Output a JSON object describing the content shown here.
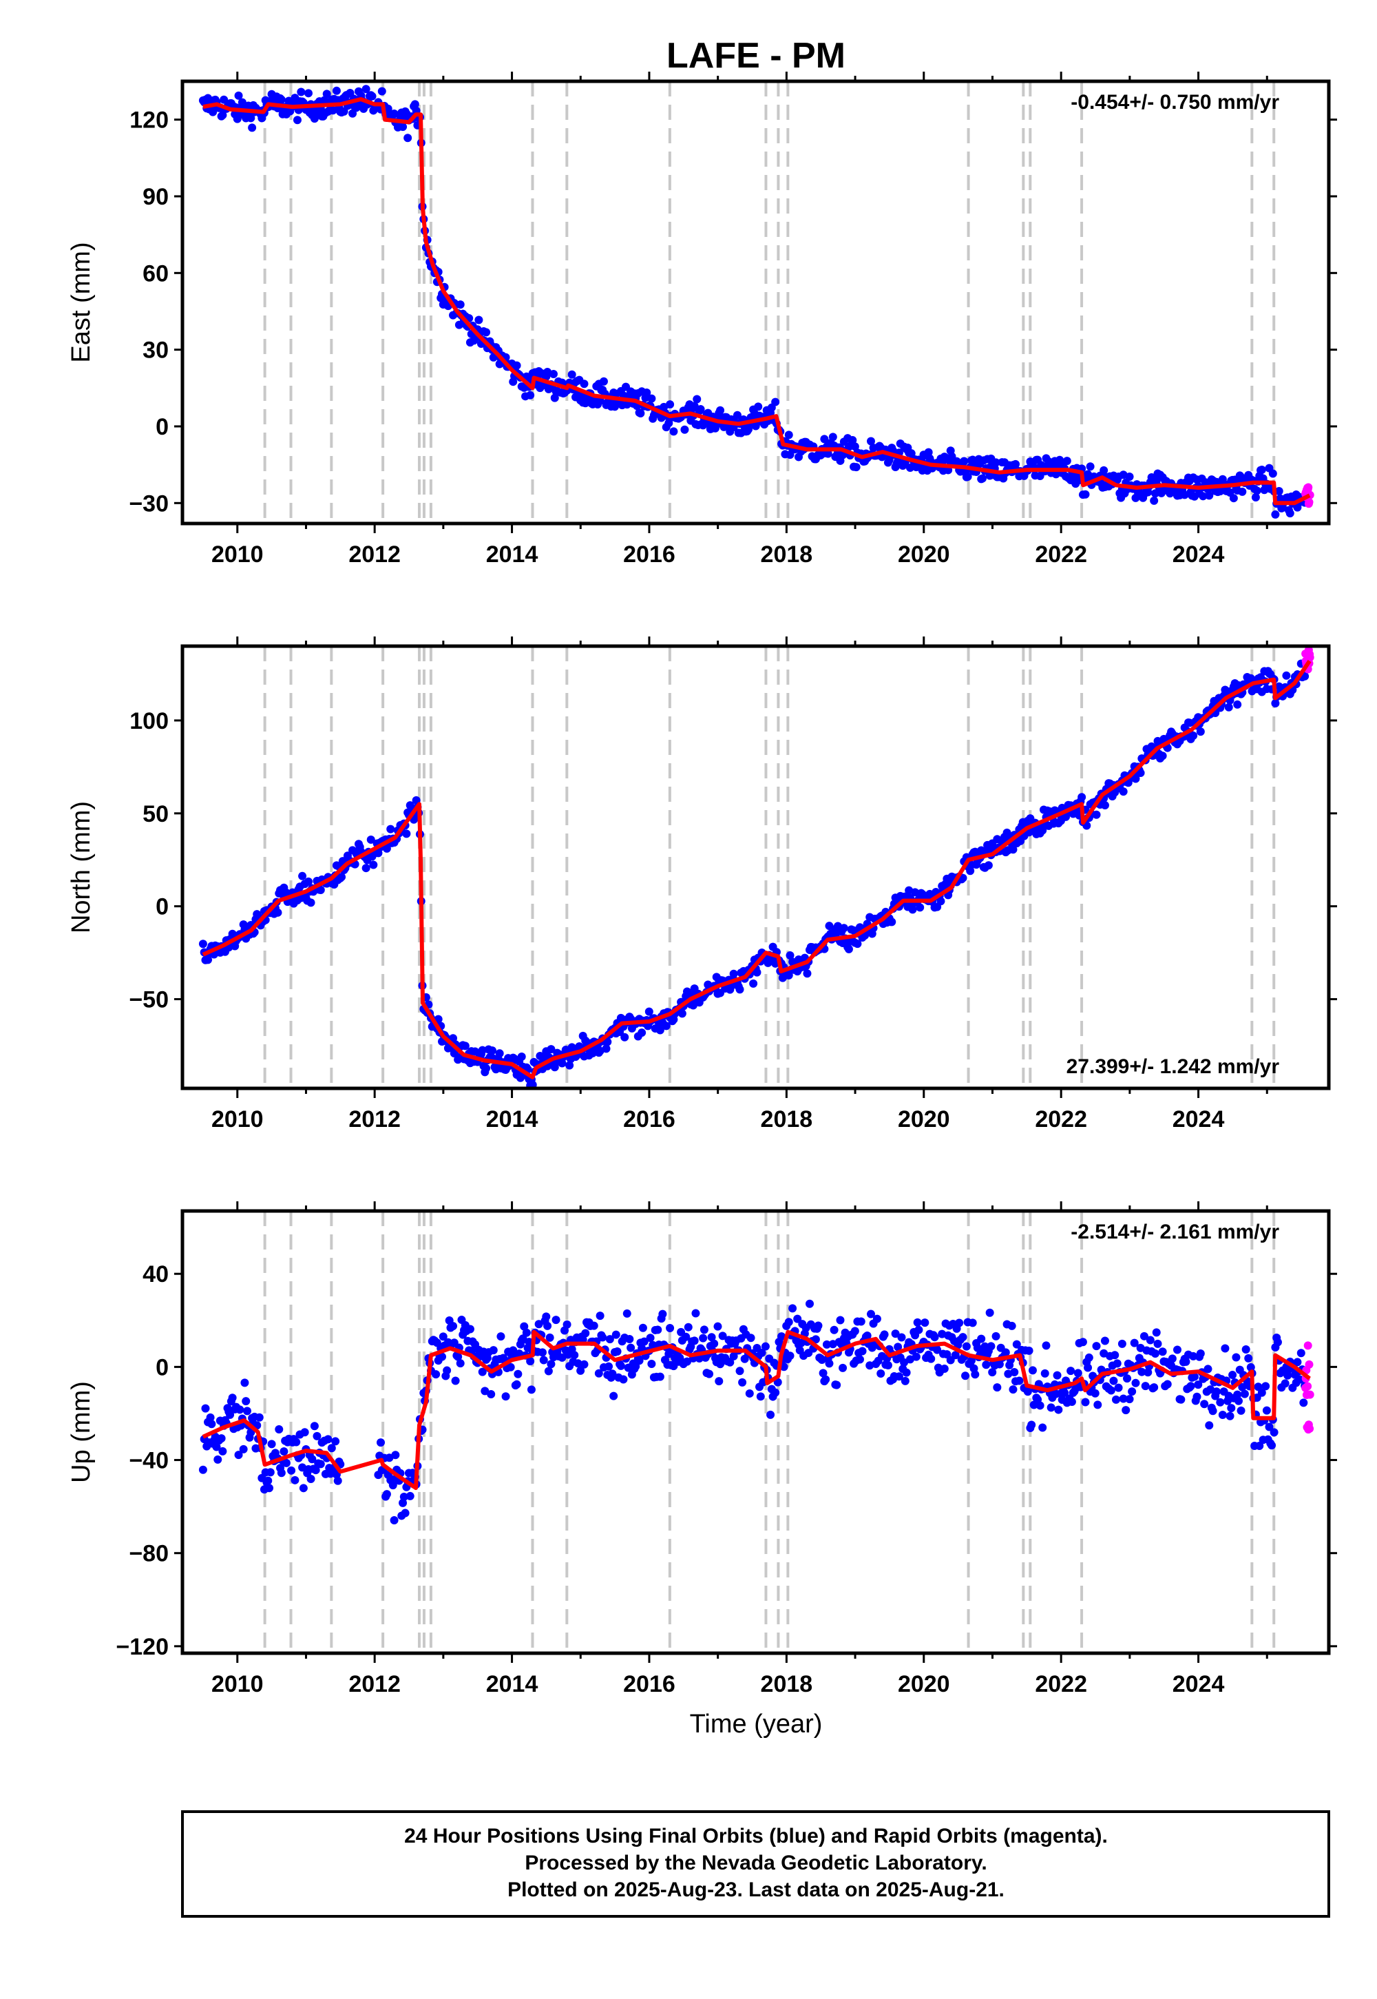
{
  "title": "LAFE - PM",
  "x_axis_label": "Time (year)",
  "footer": {
    "line1": "24 Hour Positions Using Final Orbits (blue) and Rapid Orbits (magenta).",
    "line2": "Processed by the Nevada Geodetic Laboratory.",
    "line3": "Plotted on 2025-Aug-23. Last data on 2025-Aug-21."
  },
  "colors": {
    "final_orbits": "#0000ff",
    "rapid_orbits": "#ff00ff",
    "model_fit": "#ff0000",
    "event_lines": "#c8c8c8"
  },
  "chart_data": [
    {
      "type": "scatter",
      "name": "east",
      "ylabel": "East (mm)",
      "rate": "-0.454+/- 0.750 mm/yr",
      "rate_position": "top-right",
      "xlim": [
        2009.2,
        2025.9
      ],
      "ylim": [
        -38,
        135
      ],
      "yticks": [
        -30,
        0,
        30,
        60,
        90,
        120
      ],
      "xticks": [
        2010,
        2012,
        2014,
        2016,
        2018,
        2020,
        2022,
        2024
      ],
      "event_lines": [
        2010.4,
        2010.78,
        2011.37,
        2012.12,
        2012.65,
        2012.72,
        2012.82,
        2014.3,
        2014.8,
        2016.3,
        2017.7,
        2017.88,
        2018.02,
        2020.65,
        2021.45,
        2021.55,
        2022.3,
        2024.78,
        2025.1
      ],
      "fit": [
        [
          2009.5,
          125
        ],
        [
          2009.7,
          126
        ],
        [
          2009.9,
          124
        ],
        [
          2010.38,
          123
        ],
        [
          2010.45,
          126
        ],
        [
          2010.8,
          125
        ],
        [
          2011.5,
          126
        ],
        [
          2011.8,
          128
        ],
        [
          2012.0,
          126
        ],
        [
          2012.12,
          126
        ],
        [
          2012.15,
          120
        ],
        [
          2012.5,
          119
        ],
        [
          2012.6,
          122
        ],
        [
          2012.67,
          122
        ],
        [
          2012.7,
          85
        ],
        [
          2012.75,
          72
        ],
        [
          2012.85,
          63
        ],
        [
          2013.0,
          53
        ],
        [
          2013.2,
          45
        ],
        [
          2013.5,
          36
        ],
        [
          2013.8,
          28
        ],
        [
          2014.0,
          22
        ],
        [
          2014.3,
          15
        ],
        [
          2014.32,
          19
        ],
        [
          2014.8,
          15
        ],
        [
          2014.82,
          16
        ],
        [
          2015.2,
          12
        ],
        [
          2015.5,
          11
        ],
        [
          2015.8,
          10
        ],
        [
          2016.3,
          4
        ],
        [
          2016.6,
          5
        ],
        [
          2017.0,
          2
        ],
        [
          2017.3,
          1
        ],
        [
          2017.7,
          3
        ],
        [
          2017.85,
          4
        ],
        [
          2017.95,
          -7
        ],
        [
          2018.3,
          -9
        ],
        [
          2018.8,
          -9
        ],
        [
          2019.1,
          -12
        ],
        [
          2019.4,
          -10
        ],
        [
          2019.8,
          -13
        ],
        [
          2020.1,
          -15
        ],
        [
          2020.6,
          -16
        ],
        [
          2021.1,
          -18
        ],
        [
          2021.5,
          -17
        ],
        [
          2022.1,
          -17
        ],
        [
          2022.3,
          -18
        ],
        [
          2022.32,
          -23
        ],
        [
          2022.6,
          -20
        ],
        [
          2022.8,
          -23
        ],
        [
          2023.1,
          -24
        ],
        [
          2023.5,
          -23
        ],
        [
          2024.0,
          -24
        ],
        [
          2024.5,
          -23
        ],
        [
          2024.8,
          -22
        ],
        [
          2025.1,
          -22
        ],
        [
          2025.12,
          -30
        ],
        [
          2025.4,
          -30
        ],
        [
          2025.62,
          -27
        ]
      ]
    },
    {
      "type": "scatter",
      "name": "north",
      "ylabel": "North (mm)",
      "rate": "27.399+/- 1.242 mm/yr",
      "rate_position": "bottom-right",
      "xlim": [
        2009.2,
        2025.9
      ],
      "ylim": [
        -98,
        140
      ],
      "yticks": [
        -50,
        0,
        50,
        100
      ],
      "xticks": [
        2010,
        2012,
        2014,
        2016,
        2018,
        2020,
        2022,
        2024
      ],
      "event_lines": [
        2010.4,
        2010.78,
        2011.37,
        2012.12,
        2012.65,
        2012.72,
        2012.82,
        2014.3,
        2014.8,
        2016.3,
        2017.7,
        2017.88,
        2018.02,
        2020.65,
        2021.45,
        2021.55,
        2022.3,
        2024.78,
        2025.1
      ],
      "fit": [
        [
          2009.5,
          -26
        ],
        [
          2009.8,
          -21
        ],
        [
          2010.2,
          -13
        ],
        [
          2010.4,
          -5
        ],
        [
          2010.6,
          3
        ],
        [
          2011.0,
          8
        ],
        [
          2011.37,
          15
        ],
        [
          2011.6,
          23
        ],
        [
          2012.0,
          31
        ],
        [
          2012.3,
          37
        ],
        [
          2012.65,
          55
        ],
        [
          2012.67,
          25
        ],
        [
          2012.7,
          -52
        ],
        [
          2012.8,
          -58
        ],
        [
          2013.0,
          -70
        ],
        [
          2013.3,
          -80
        ],
        [
          2013.6,
          -83
        ],
        [
          2014.0,
          -85
        ],
        [
          2014.3,
          -92
        ],
        [
          2014.35,
          -87
        ],
        [
          2014.6,
          -82
        ],
        [
          2014.8,
          -80
        ],
        [
          2015.0,
          -78
        ],
        [
          2015.3,
          -72
        ],
        [
          2015.6,
          -63
        ],
        [
          2016.0,
          -62
        ],
        [
          2016.3,
          -58
        ],
        [
          2016.6,
          -50
        ],
        [
          2017.0,
          -43
        ],
        [
          2017.4,
          -38
        ],
        [
          2017.7,
          -25
        ],
        [
          2017.88,
          -27
        ],
        [
          2017.92,
          -35
        ],
        [
          2018.3,
          -30
        ],
        [
          2018.6,
          -18
        ],
        [
          2019.0,
          -16
        ],
        [
          2019.4,
          -7
        ],
        [
          2019.7,
          3
        ],
        [
          2020.1,
          3
        ],
        [
          2020.4,
          10
        ],
        [
          2020.65,
          25
        ],
        [
          2021.0,
          28
        ],
        [
          2021.5,
          42
        ],
        [
          2022.0,
          50
        ],
        [
          2022.3,
          55
        ],
        [
          2022.32,
          45
        ],
        [
          2022.6,
          60
        ],
        [
          2023.0,
          70
        ],
        [
          2023.4,
          85
        ],
        [
          2023.9,
          95
        ],
        [
          2024.4,
          112
        ],
        [
          2024.8,
          120
        ],
        [
          2025.1,
          122
        ],
        [
          2025.12,
          112
        ],
        [
          2025.4,
          120
        ],
        [
          2025.62,
          132
        ]
      ]
    },
    {
      "type": "scatter",
      "name": "up",
      "ylabel": "Up (mm)",
      "rate": "-2.514+/- 2.161 mm/yr",
      "rate_position": "top-right",
      "xlim": [
        2009.2,
        2025.9
      ],
      "ylim": [
        -123,
        67
      ],
      "yticks": [
        -120,
        -80,
        -40,
        0,
        40
      ],
      "xticks": [
        2010,
        2012,
        2014,
        2016,
        2018,
        2020,
        2022,
        2024
      ],
      "event_lines": [
        2010.4,
        2010.78,
        2011.37,
        2012.12,
        2012.65,
        2012.72,
        2012.82,
        2014.3,
        2014.8,
        2016.3,
        2017.7,
        2017.88,
        2018.02,
        2020.65,
        2021.45,
        2021.55,
        2022.3,
        2024.78,
        2025.1
      ],
      "fit": [
        [
          2009.5,
          -30
        ],
        [
          2009.8,
          -26
        ],
        [
          2010.1,
          -23
        ],
        [
          2010.3,
          -28
        ],
        [
          2010.4,
          -42
        ],
        [
          2010.78,
          -38
        ],
        [
          2011.0,
          -36
        ],
        [
          2011.3,
          -37
        ],
        [
          2011.5,
          -45
        ],
        [
          2012.1,
          -40
        ],
        [
          2012.12,
          -42
        ],
        [
          2012.3,
          -46
        ],
        [
          2012.6,
          -52
        ],
        [
          2012.65,
          -25
        ],
        [
          2012.75,
          -15
        ],
        [
          2012.82,
          5
        ],
        [
          2013.1,
          8
        ],
        [
          2013.4,
          5
        ],
        [
          2013.7,
          -2
        ],
        [
          2014.0,
          3
        ],
        [
          2014.3,
          5
        ],
        [
          2014.32,
          15
        ],
        [
          2014.6,
          8
        ],
        [
          2014.8,
          10
        ],
        [
          2015.2,
          10
        ],
        [
          2015.5,
          3
        ],
        [
          2015.9,
          6
        ],
        [
          2016.3,
          9
        ],
        [
          2016.6,
          5
        ],
        [
          2017.0,
          7
        ],
        [
          2017.4,
          7
        ],
        [
          2017.7,
          0
        ],
        [
          2017.72,
          -7
        ],
        [
          2017.88,
          -4
        ],
        [
          2017.92,
          5
        ],
        [
          2018.02,
          15
        ],
        [
          2018.3,
          12
        ],
        [
          2018.6,
          5
        ],
        [
          2019.0,
          10
        ],
        [
          2019.3,
          12
        ],
        [
          2019.5,
          5
        ],
        [
          2019.9,
          9
        ],
        [
          2020.3,
          10
        ],
        [
          2020.65,
          5
        ],
        [
          2021.0,
          3
        ],
        [
          2021.4,
          5
        ],
        [
          2021.5,
          -8
        ],
        [
          2021.8,
          -10
        ],
        [
          2022.2,
          -7
        ],
        [
          2022.3,
          -5
        ],
        [
          2022.35,
          -10
        ],
        [
          2022.6,
          -3
        ],
        [
          2023.0,
          -1
        ],
        [
          2023.3,
          2
        ],
        [
          2023.6,
          -3
        ],
        [
          2024.0,
          -2
        ],
        [
          2024.5,
          -9
        ],
        [
          2024.78,
          -2
        ],
        [
          2024.8,
          -22
        ],
        [
          2025.1,
          -22
        ],
        [
          2025.12,
          5
        ],
        [
          2025.4,
          0
        ],
        [
          2025.62,
          -5
        ]
      ]
    }
  ]
}
